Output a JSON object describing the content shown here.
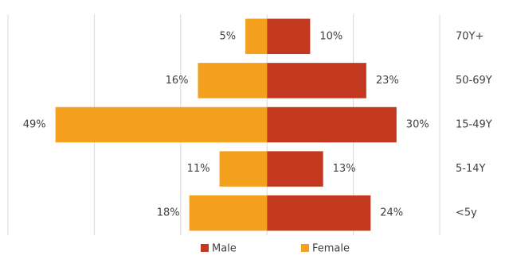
{
  "chart_data": {
    "type": "diverging-bar",
    "categories": [
      "70Y+",
      "50-69Y",
      "15-49Y",
      "5-14Y",
      "<5y"
    ],
    "series": [
      {
        "name": "Male",
        "color": "#c2391f",
        "values": [
          10,
          23,
          30,
          13,
          24
        ],
        "value_labels": [
          "10%",
          "23%",
          "30%",
          "13%",
          "24%"
        ]
      },
      {
        "name": "Female",
        "color": "#f2a01e",
        "values": [
          5,
          16,
          49,
          11,
          18
        ],
        "value_labels": [
          "5%",
          "16%",
          "49%",
          "11%",
          "18%"
        ]
      }
    ],
    "xlim": [
      -60,
      40
    ],
    "xticks": [
      -60,
      -40,
      -20,
      0,
      20,
      40
    ],
    "grid": true,
    "legend": "bottom"
  }
}
